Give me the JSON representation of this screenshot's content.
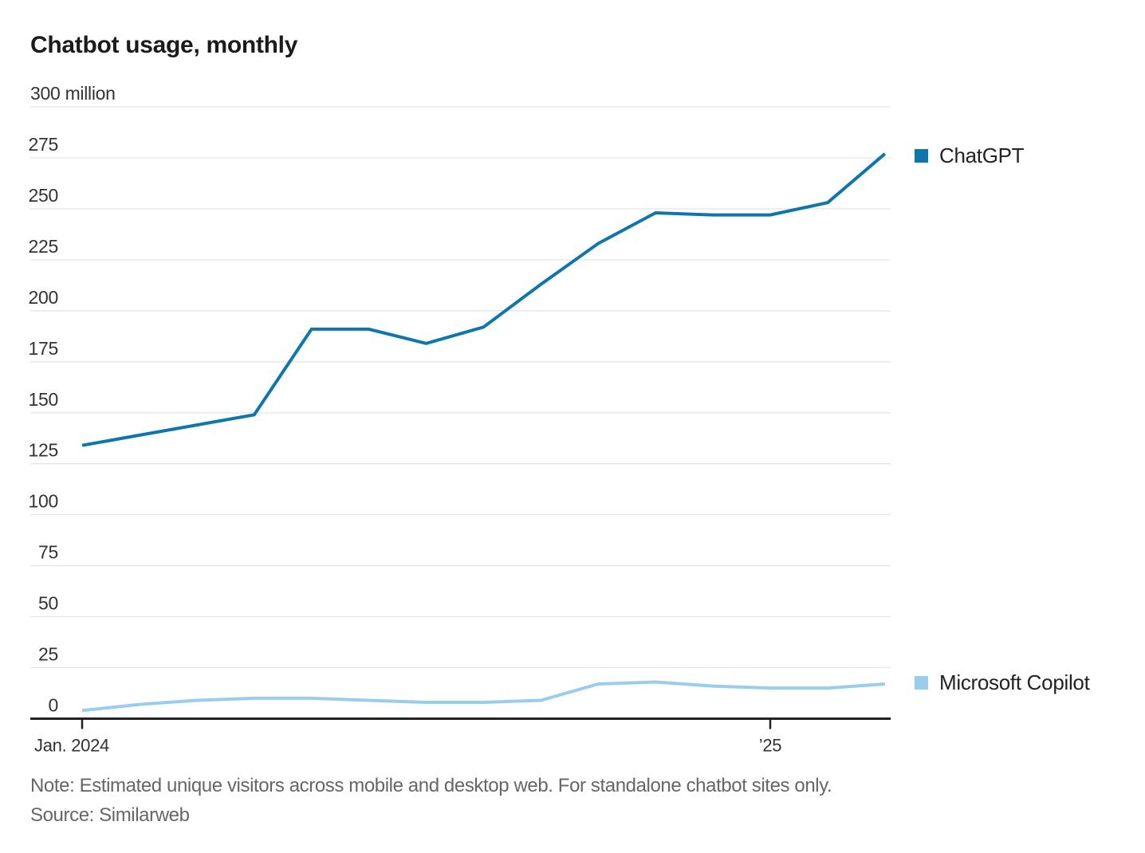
{
  "chart_data": {
    "type": "line",
    "title": "Chatbot usage, monthly",
    "x": [
      "2024-01",
      "2024-02",
      "2024-03",
      "2024-04",
      "2024-05",
      "2024-06",
      "2024-07",
      "2024-08",
      "2024-09",
      "2024-10",
      "2024-11",
      "2024-12",
      "2025-01",
      "2025-02",
      "2025-03"
    ],
    "series": [
      {
        "name": "ChatGPT",
        "color": "#0e76ad",
        "values": [
          134,
          139,
          144,
          149,
          191,
          191,
          184,
          192,
          213,
          233,
          248,
          247,
          247,
          253,
          277
        ]
      },
      {
        "name": "Microsoft Copilot",
        "color": "#99cdee",
        "values": [
          4,
          7,
          9,
          10,
          10,
          9,
          8,
          8,
          9,
          17,
          18,
          16,
          15,
          15,
          17
        ]
      }
    ],
    "ylim": [
      0,
      300
    ],
    "ytick_step": 25,
    "unit_suffix": " million",
    "xticks": [
      {
        "index": 0,
        "label": "Jan. 2024"
      },
      {
        "index": 12,
        "label": "’25"
      }
    ],
    "grid": true,
    "legend_position": "right of plot, aligned with each line end",
    "note": "Note: Estimated unique visitors across mobile and desktop web. For standalone chatbot sites only.",
    "source": "Source: Similarweb"
  },
  "colors": {
    "background": "#ffffff",
    "grid": "#e6e6e6",
    "axis": "#222222",
    "axis_text": "#333333",
    "note_text": "#666666",
    "title_text": "#1b1b1b"
  }
}
